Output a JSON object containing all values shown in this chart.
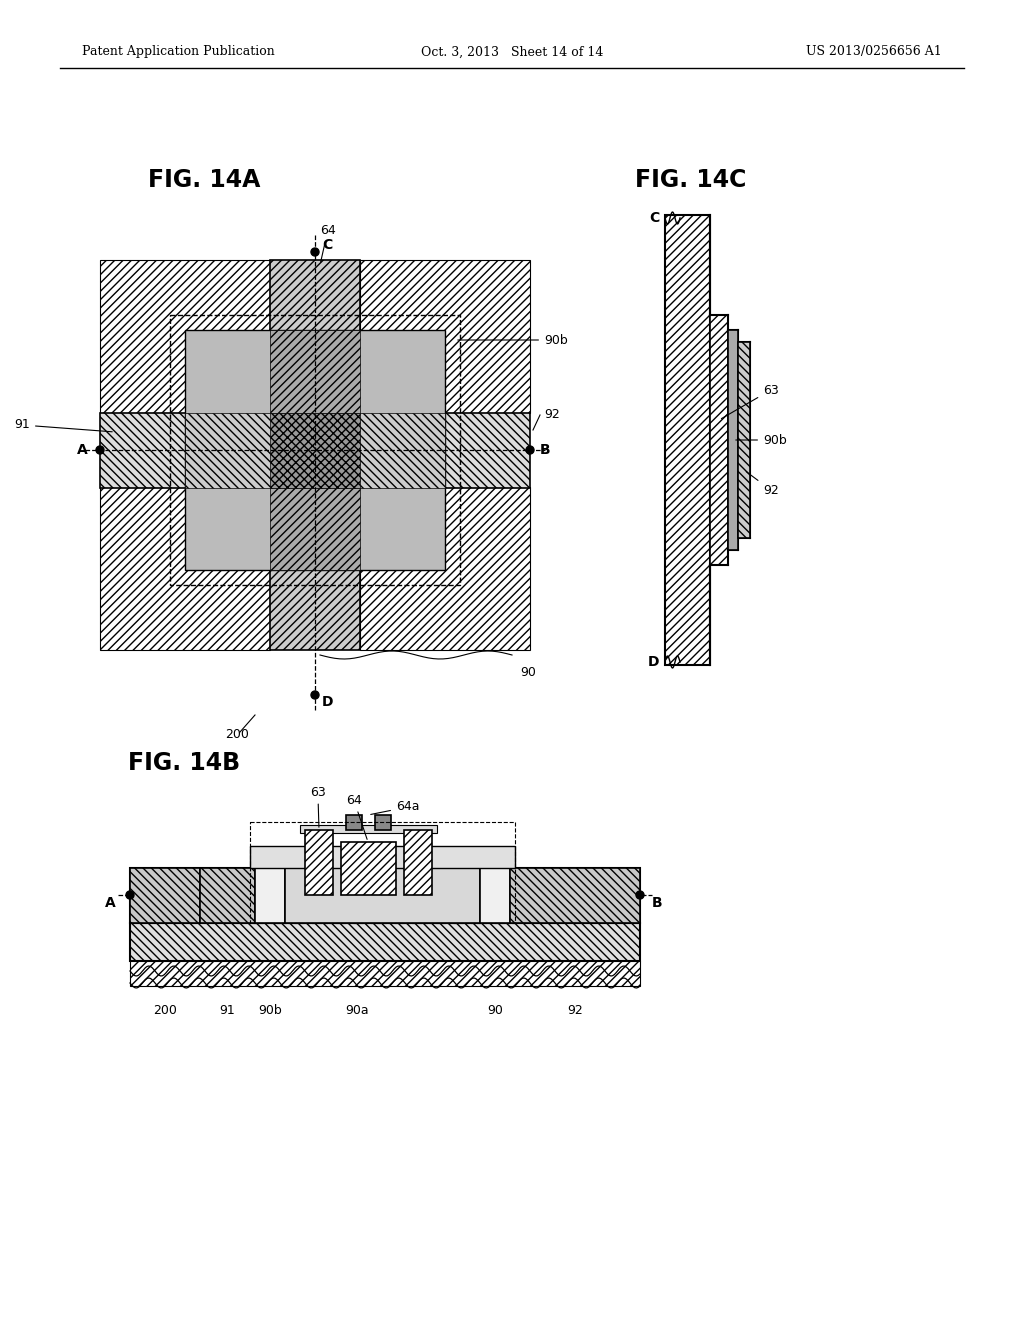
{
  "header_left": "Patent Application Publication",
  "header_mid": "Oct. 3, 2013   Sheet 14 of 14",
  "header_right": "US 2013/0256656 A1",
  "fig14a_label": "FIG. 14A",
  "fig14b_label": "FIG. 14B",
  "fig14c_label": "FIG. 14C",
  "bg_color": "#ffffff"
}
